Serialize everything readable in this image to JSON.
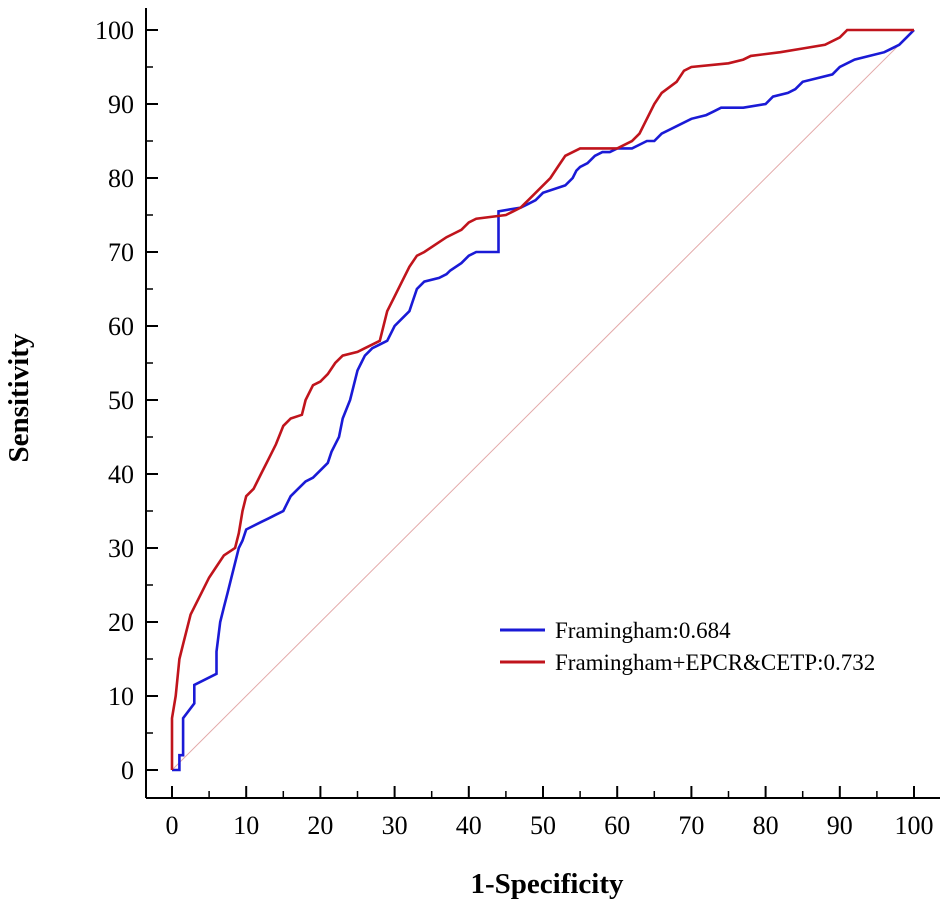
{
  "chart_data": {
    "type": "line",
    "title": "",
    "xlabel": "1-Specificity",
    "ylabel": "Sensitivity",
    "xlim": [
      0,
      100
    ],
    "ylim": [
      0,
      100
    ],
    "xticks": [
      0,
      10,
      20,
      30,
      40,
      50,
      60,
      70,
      80,
      90,
      100
    ],
    "yticks": [
      0,
      10,
      20,
      30,
      40,
      50,
      60,
      70,
      80,
      90,
      100
    ],
    "grid": false,
    "legend_position": "bottom-right",
    "reference_line": {
      "name": "chance-diagonal",
      "x": [
        0,
        100
      ],
      "y": [
        0,
        100
      ],
      "color": "#e3a9a9"
    },
    "series": [
      {
        "name": "Framingham:0.684",
        "color": "#1a1ad6",
        "x": [
          0,
          1,
          1,
          1.5,
          1.5,
          3,
          3,
          6,
          6,
          6.5,
          7,
          7.5,
          8,
          8.5,
          9,
          9.5,
          10,
          12,
          13,
          14,
          15,
          15.5,
          16,
          17,
          18,
          19,
          20,
          21,
          21.5,
          22,
          22.5,
          23,
          24,
          24.5,
          25,
          25.5,
          26,
          26.5,
          27,
          29,
          29.5,
          30,
          31,
          32,
          32.5,
          33,
          34,
          36,
          37,
          37.5,
          39,
          40,
          41,
          41.5,
          43,
          44,
          44,
          47,
          48,
          49,
          50,
          53,
          54,
          54.5,
          55,
          56,
          57,
          58,
          59,
          60,
          62,
          64,
          65,
          66,
          68,
          70,
          72,
          73,
          74,
          77,
          80,
          81,
          83,
          84,
          85,
          87,
          89,
          90,
          92,
          94,
          96,
          98,
          99,
          100
        ],
        "y": [
          0,
          0,
          2,
          2,
          7,
          9,
          11.5,
          13,
          16,
          20,
          22,
          24,
          26,
          28,
          30,
          31,
          32.5,
          33.5,
          34,
          34.5,
          35,
          36,
          37,
          38,
          39,
          39.5,
          40.5,
          41.5,
          43,
          44,
          45,
          47.5,
          50,
          52,
          54,
          55,
          56,
          56.5,
          57,
          58,
          59,
          60,
          61,
          62,
          63.5,
          65,
          66,
          66.5,
          67,
          67.5,
          68.5,
          69.5,
          70,
          70,
          70,
          70,
          75.5,
          76,
          76.5,
          77,
          78,
          79,
          80,
          81,
          81.5,
          82,
          83,
          83.5,
          83.5,
          84,
          84,
          85,
          85,
          86,
          87,
          88,
          88.5,
          89,
          89.5,
          89.5,
          90,
          91,
          91.5,
          92,
          93,
          93.5,
          94,
          95,
          96,
          96.5,
          97,
          98,
          99,
          100
        ]
      },
      {
        "name": "Framingham+EPCR&CETP:0.732",
        "color": "#c0141c",
        "x": [
          0,
          0,
          0.5,
          1,
          1.5,
          2.5,
          3,
          4,
          5,
          6,
          7,
          8.5,
          9,
          9.5,
          10,
          11,
          12,
          13,
          14,
          15,
          16,
          17.5,
          18,
          19,
          20,
          21,
          22,
          23,
          25,
          26,
          28,
          29,
          29.5,
          30,
          31,
          32,
          33,
          34,
          37,
          38,
          39,
          40,
          41,
          45,
          46,
          47,
          48,
          49,
          50,
          51,
          52,
          53,
          55,
          58,
          60,
          62,
          63,
          63.5,
          64,
          65,
          66,
          68,
          69,
          70,
          75,
          77,
          78,
          82,
          85,
          88,
          90,
          91,
          95,
          98,
          100
        ],
        "y": [
          0,
          7,
          10,
          15,
          17,
          21,
          22,
          24,
          26,
          27.5,
          29,
          30,
          32,
          35,
          37,
          38,
          40,
          42,
          44,
          46.5,
          47.5,
          48,
          50,
          52,
          52.5,
          53.5,
          55,
          56,
          56.5,
          57,
          58,
          62,
          63,
          64,
          66,
          68,
          69.5,
          70,
          72,
          72.5,
          73,
          74,
          74.5,
          75,
          75.5,
          76,
          77,
          78,
          79,
          80,
          81.5,
          83,
          84,
          84,
          84,
          85,
          86,
          87,
          88,
          90,
          91.5,
          93,
          94.5,
          95,
          95.5,
          96,
          96.5,
          97,
          97.5,
          98,
          99,
          100,
          100,
          100,
          100
        ]
      }
    ]
  }
}
